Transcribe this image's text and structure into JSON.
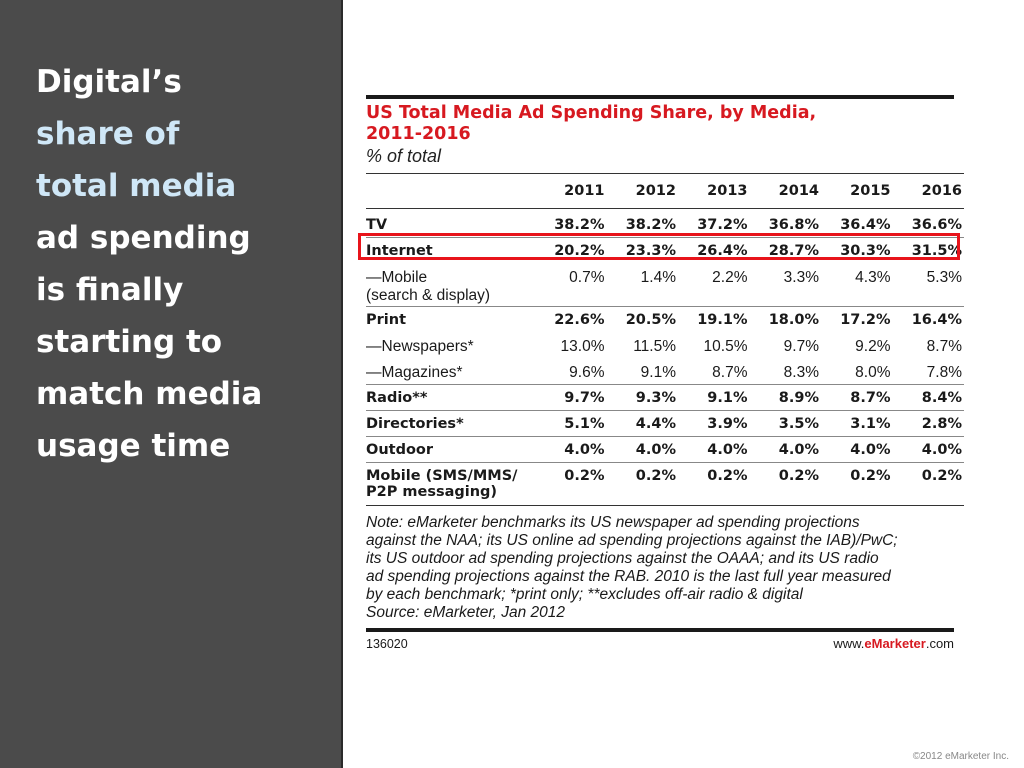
{
  "slide": {
    "title_lines": [
      {
        "text": "Digital’s",
        "highlight": false
      },
      {
        "text": "share of",
        "highlight": true
      },
      {
        "text": "total media",
        "highlight": true
      },
      {
        "text": "ad spending",
        "highlight": false
      },
      {
        "text": "is finally",
        "highlight": false
      },
      {
        "text": "starting to",
        "highlight": false
      },
      {
        "text": "match media",
        "highlight": false
      },
      {
        "text": "usage time",
        "highlight": false
      }
    ],
    "copyright": "©2012 eMarketer Inc.",
    "colors": {
      "panel": "#4b4b4b",
      "highlight_text": "#cfe7f7",
      "brand_red": "#d71920",
      "box_red": "#e8141b"
    }
  },
  "chart_data": {
    "type": "table",
    "title_line1": "US Total Media Ad Spending Share, by Media,",
    "title_line2": "2011-2016",
    "subtitle": "% of total",
    "columns": [
      "2011",
      "2012",
      "2013",
      "2014",
      "2015",
      "2016"
    ],
    "rows": [
      {
        "label": "TV",
        "label2": "",
        "bold": true,
        "values": [
          "38.2%",
          "38.2%",
          "37.2%",
          "36.8%",
          "36.4%",
          "36.6%"
        ]
      },
      {
        "label": "Internet",
        "label2": "",
        "bold": true,
        "highlighted": true,
        "values": [
          "20.2%",
          "23.3%",
          "26.4%",
          "28.7%",
          "30.3%",
          "31.5%"
        ]
      },
      {
        "label": "—Mobile",
        "label2": "(search & display)",
        "bold": false,
        "values": [
          "0.7%",
          "1.4%",
          "2.2%",
          "3.3%",
          "4.3%",
          "5.3%"
        ]
      },
      {
        "label": "Print",
        "label2": "",
        "bold": true,
        "values": [
          "22.6%",
          "20.5%",
          "19.1%",
          "18.0%",
          "17.2%",
          "16.4%"
        ]
      },
      {
        "label": "—Newspapers*",
        "label2": "",
        "bold": false,
        "values": [
          "13.0%",
          "11.5%",
          "10.5%",
          "9.7%",
          "9.2%",
          "8.7%"
        ]
      },
      {
        "label": "—Magazines*",
        "label2": "",
        "bold": false,
        "values": [
          "9.6%",
          "9.1%",
          "8.7%",
          "8.3%",
          "8.0%",
          "7.8%"
        ]
      },
      {
        "label": "Radio**",
        "label2": "",
        "bold": true,
        "values": [
          "9.7%",
          "9.3%",
          "9.1%",
          "8.9%",
          "8.7%",
          "8.4%"
        ]
      },
      {
        "label": "Directories*",
        "label2": "",
        "bold": true,
        "values": [
          "5.1%",
          "4.4%",
          "3.9%",
          "3.5%",
          "3.1%",
          "2.8%"
        ]
      },
      {
        "label": "Outdoor",
        "label2": "",
        "bold": true,
        "values": [
          "4.0%",
          "4.0%",
          "4.0%",
          "4.0%",
          "4.0%",
          "4.0%"
        ]
      },
      {
        "label": "Mobile (SMS/MMS/",
        "label2": "P2P messaging)",
        "bold": true,
        "values": [
          "0.2%",
          "0.2%",
          "0.2%",
          "0.2%",
          "0.2%",
          "0.2%"
        ]
      }
    ],
    "note_lines": [
      "Note: eMarketer benchmarks its US newspaper ad spending projections",
      "against the NAA; its US online ad spending projections against the IAB)/PwC;",
      "its US outdoor ad spending projections against the OAAA; and its US radio",
      "ad spending projections against the RAB. 2010 is the last full year measured",
      "by each benchmark; *print only; **excludes off-air radio & digital",
      "Source: eMarketer, Jan 2012"
    ],
    "footer_id": "136020",
    "footer_src_prefix": "www.",
    "footer_src_brand": "eMarketer",
    "footer_src_suffix": ".com"
  }
}
